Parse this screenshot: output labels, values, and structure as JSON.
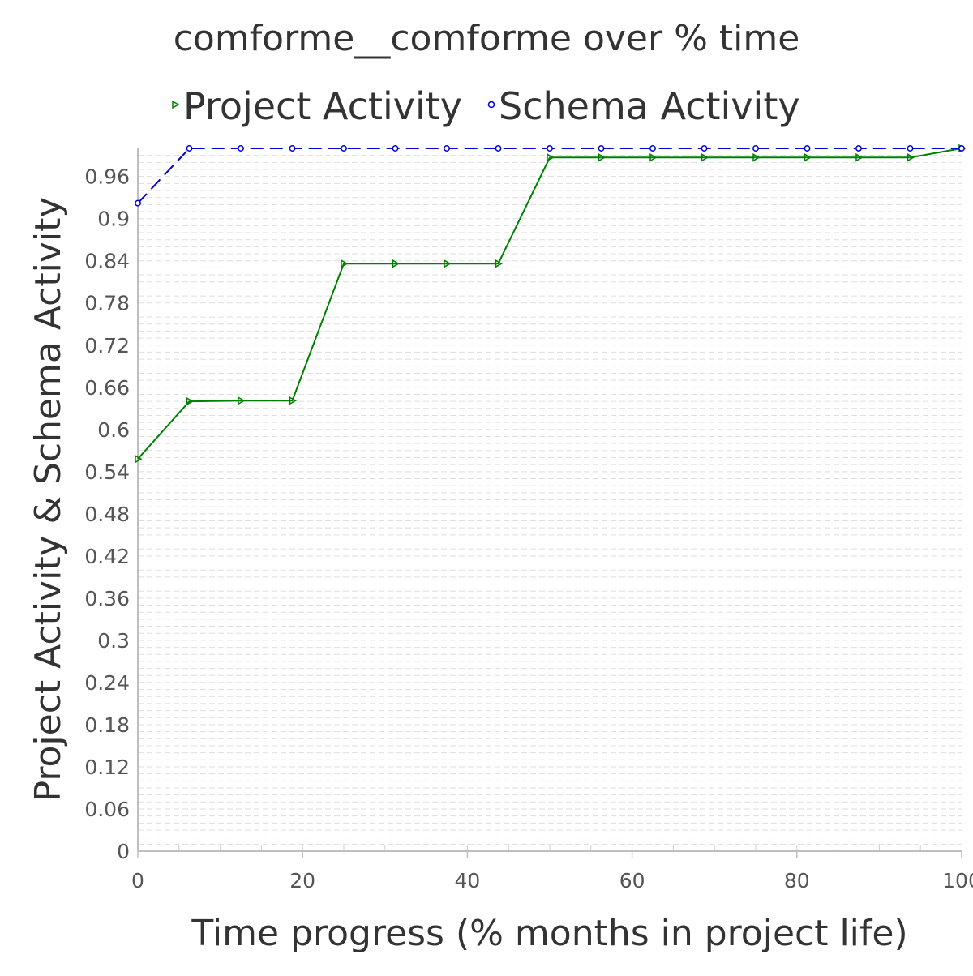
{
  "chart_data": {
    "type": "line",
    "title": "comforme__comforme over % time",
    "xlabel": "Time progress (% months in project life)",
    "ylabel": "Project Activity & Schema Activity",
    "xlim": [
      0,
      100
    ],
    "ylim": [
      0,
      1.0
    ],
    "x_ticks": [
      "0",
      "20",
      "40",
      "60",
      "80",
      "100"
    ],
    "y_ticks": [
      "0",
      "0.06",
      "0.12",
      "0.18",
      "0.24",
      "0.3",
      "0.36",
      "0.42",
      "0.48",
      "0.54",
      "0.6",
      "0.66",
      "0.72",
      "0.78",
      "0.84",
      "0.9",
      "0.96"
    ],
    "legend_position": "top",
    "grid": true,
    "series": [
      {
        "name": "Project Activity",
        "color": "#008000",
        "marker": "triangle-right",
        "line_style": "solid",
        "x": [
          0,
          6.25,
          12.5,
          18.75,
          25,
          31.25,
          37.5,
          43.75,
          50,
          56.25,
          62.5,
          68.75,
          75,
          81.25,
          87.5,
          93.75,
          100
        ],
        "y": [
          0.558,
          0.64,
          0.641,
          0.641,
          0.836,
          0.836,
          0.836,
          0.836,
          0.987,
          0.987,
          0.987,
          0.987,
          0.987,
          0.987,
          0.987,
          0.987,
          1.0
        ]
      },
      {
        "name": "Schema Activity",
        "color": "#0000cc",
        "marker": "circle",
        "line_style": "dashed",
        "x": [
          0,
          6.25,
          12.5,
          18.75,
          25,
          31.25,
          37.5,
          43.75,
          50,
          56.25,
          62.5,
          68.75,
          75,
          81.25,
          87.5,
          93.75,
          100
        ],
        "y": [
          0.922,
          1.0,
          1.0,
          1.0,
          1.0,
          1.0,
          1.0,
          1.0,
          1.0,
          1.0,
          1.0,
          1.0,
          1.0,
          1.0,
          1.0,
          1.0,
          1.0
        ]
      }
    ]
  }
}
